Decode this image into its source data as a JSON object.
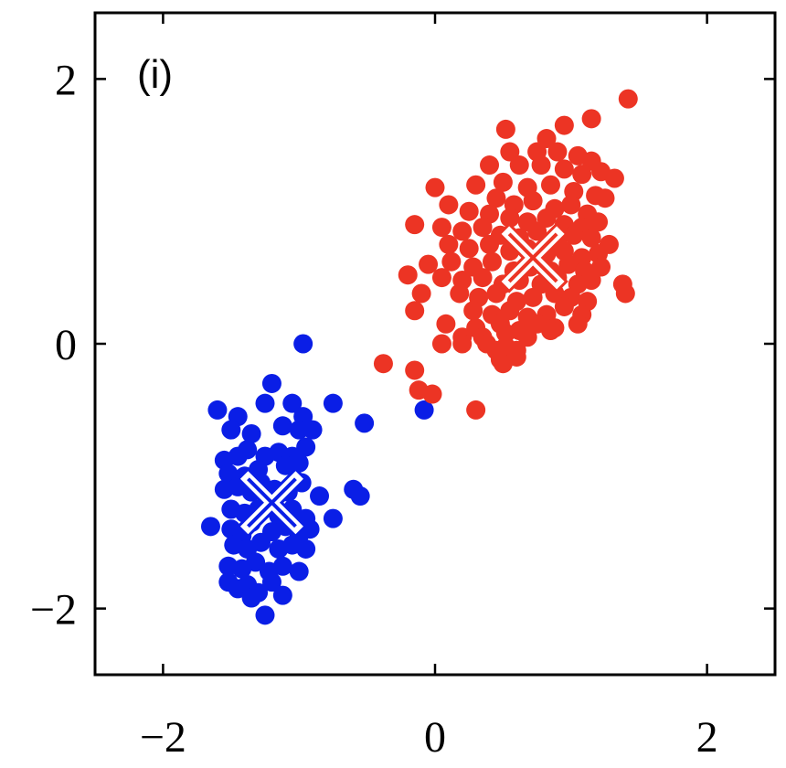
{
  "chart_data": {
    "type": "scatter",
    "annotation": "(i)",
    "xlim": [
      -2.5,
      2.5
    ],
    "ylim": [
      -2.5,
      2.5
    ],
    "xticks": [
      {
        "value": -2,
        "label": "−2"
      },
      {
        "value": 0,
        "label": "0"
      },
      {
        "value": 2,
        "label": "2"
      }
    ],
    "yticks": [
      {
        "value": -2,
        "label": "−2"
      },
      {
        "value": 0,
        "label": "0"
      },
      {
        "value": 2,
        "label": "2"
      }
    ],
    "grid": false,
    "colors": {
      "cluster_blue": "#0a1ee6",
      "cluster_red": "#ec3424",
      "centroid": "#ffffff"
    },
    "series": [
      {
        "color": "#0a1ee6",
        "centroid": [
          -1.2,
          -1.2
        ],
        "points": [
          [
            -0.97,
            0.0
          ],
          [
            -1.6,
            -0.5
          ],
          [
            -1.45,
            -0.55
          ],
          [
            -1.25,
            -0.45
          ],
          [
            -1.2,
            -0.3
          ],
          [
            -1.05,
            -0.45
          ],
          [
            -0.97,
            -0.55
          ],
          [
            -0.75,
            -0.45
          ],
          [
            -0.52,
            -0.6
          ],
          [
            -1.5,
            -0.65
          ],
          [
            -1.35,
            -0.68
          ],
          [
            -1.12,
            -0.62
          ],
          [
            -1.0,
            -0.65
          ],
          [
            -0.9,
            -0.65
          ],
          [
            -1.55,
            -0.88
          ],
          [
            -1.45,
            -0.85
          ],
          [
            -1.38,
            -0.8
          ],
          [
            -1.25,
            -0.85
          ],
          [
            -1.15,
            -0.82
          ],
          [
            -1.05,
            -0.85
          ],
          [
            -0.95,
            -0.78
          ],
          [
            -1.52,
            -0.98
          ],
          [
            -1.4,
            -1.0
          ],
          [
            -1.3,
            -0.95
          ],
          [
            -1.1,
            -0.92
          ],
          [
            -1.0,
            -0.9
          ],
          [
            -1.55,
            -1.1
          ],
          [
            -1.45,
            -1.08
          ],
          [
            -1.35,
            -1.12
          ],
          [
            -1.28,
            -1.05
          ],
          [
            -1.18,
            -1.1
          ],
          [
            -1.08,
            -1.12
          ],
          [
            -0.98,
            -1.05
          ],
          [
            -0.85,
            -1.15
          ],
          [
            -0.6,
            -1.1
          ],
          [
            -0.55,
            -1.15
          ],
          [
            -1.5,
            -1.25
          ],
          [
            -1.4,
            -1.28
          ],
          [
            -1.3,
            -1.25
          ],
          [
            -1.15,
            -1.3
          ],
          [
            -1.05,
            -1.25
          ],
          [
            -0.95,
            -1.32
          ],
          [
            -0.75,
            -1.32
          ],
          [
            -1.65,
            -1.38
          ],
          [
            -1.5,
            -1.4
          ],
          [
            -1.42,
            -1.45
          ],
          [
            -1.35,
            -1.35
          ],
          [
            -1.2,
            -1.42
          ],
          [
            -1.1,
            -1.38
          ],
          [
            -1.0,
            -1.45
          ],
          [
            -0.92,
            -1.4
          ],
          [
            -1.48,
            -1.52
          ],
          [
            -1.38,
            -1.55
          ],
          [
            -1.28,
            -1.5
          ],
          [
            -1.15,
            -1.55
          ],
          [
            -1.05,
            -1.52
          ],
          [
            -0.95,
            -1.55
          ],
          [
            -1.52,
            -1.68
          ],
          [
            -1.42,
            -1.7
          ],
          [
            -1.32,
            -1.65
          ],
          [
            -1.22,
            -1.72
          ],
          [
            -1.12,
            -1.68
          ],
          [
            -1.0,
            -1.72
          ],
          [
            -1.52,
            -1.8
          ],
          [
            -1.45,
            -1.85
          ],
          [
            -1.38,
            -1.82
          ],
          [
            -1.3,
            -1.88
          ],
          [
            -1.2,
            -1.8
          ],
          [
            -1.12,
            -1.9
          ],
          [
            -1.35,
            -1.92
          ],
          [
            -1.25,
            -2.05
          ],
          [
            -0.08,
            -0.5
          ]
        ]
      },
      {
        "color": "#ec3424",
        "centroid": [
          0.72,
          0.65
        ],
        "points": [
          [
            1.42,
            1.85
          ],
          [
            1.15,
            1.7
          ],
          [
            0.95,
            1.65
          ],
          [
            0.52,
            1.62
          ],
          [
            0.82,
            1.55
          ],
          [
            0.55,
            1.45
          ],
          [
            0.75,
            1.45
          ],
          [
            0.9,
            1.45
          ],
          [
            1.05,
            1.42
          ],
          [
            1.15,
            1.38
          ],
          [
            0.4,
            1.35
          ],
          [
            0.62,
            1.35
          ],
          [
            0.78,
            1.35
          ],
          [
            0.95,
            1.32
          ],
          [
            1.08,
            1.28
          ],
          [
            1.22,
            1.3
          ],
          [
            1.32,
            1.25
          ],
          [
            0.5,
            1.22
          ],
          [
            0.68,
            1.18
          ],
          [
            0.85,
            1.2
          ],
          [
            1.02,
            1.15
          ],
          [
            1.18,
            1.12
          ],
          [
            0.0,
            1.18
          ],
          [
            0.3,
            1.2
          ],
          [
            0.45,
            1.1
          ],
          [
            0.58,
            1.05
          ],
          [
            0.72,
            1.08
          ],
          [
            0.88,
            1.02
          ],
          [
            1.0,
            1.05
          ],
          [
            1.12,
            0.98
          ],
          [
            1.25,
            1.1
          ],
          [
            0.1,
            1.05
          ],
          [
            0.25,
            1.0
          ],
          [
            0.4,
            0.98
          ],
          [
            0.55,
            0.95
          ],
          [
            0.68,
            0.92
          ],
          [
            0.82,
            0.95
          ],
          [
            0.95,
            0.9
          ],
          [
            1.08,
            0.88
          ],
          [
            1.2,
            0.92
          ],
          [
            -0.15,
            0.9
          ],
          [
            0.05,
            0.88
          ],
          [
            0.2,
            0.85
          ],
          [
            0.35,
            0.88
          ],
          [
            0.48,
            0.82
          ],
          [
            0.62,
            0.8
          ],
          [
            0.75,
            0.85
          ],
          [
            0.9,
            0.78
          ],
          [
            1.02,
            0.82
          ],
          [
            1.15,
            0.8
          ],
          [
            1.28,
            0.75
          ],
          [
            0.1,
            0.75
          ],
          [
            0.25,
            0.72
          ],
          [
            0.4,
            0.75
          ],
          [
            0.55,
            0.7
          ],
          [
            0.68,
            0.72
          ],
          [
            0.82,
            0.68
          ],
          [
            0.95,
            0.7
          ],
          [
            1.08,
            0.65
          ],
          [
            1.2,
            0.68
          ],
          [
            -0.05,
            0.6
          ],
          [
            0.12,
            0.62
          ],
          [
            0.28,
            0.58
          ],
          [
            0.42,
            0.62
          ],
          [
            0.58,
            0.55
          ],
          [
            0.7,
            0.58
          ],
          [
            0.85,
            0.55
          ],
          [
            0.98,
            0.6
          ],
          [
            1.1,
            0.55
          ],
          [
            1.22,
            0.58
          ],
          [
            -0.2,
            0.52
          ],
          [
            0.05,
            0.5
          ],
          [
            0.2,
            0.48
          ],
          [
            0.35,
            0.5
          ],
          [
            0.5,
            0.45
          ],
          [
            0.62,
            0.48
          ],
          [
            0.78,
            0.45
          ],
          [
            0.9,
            0.5
          ],
          [
            1.05,
            0.45
          ],
          [
            1.15,
            0.48
          ],
          [
            -0.1,
            0.38
          ],
          [
            0.18,
            0.38
          ],
          [
            0.32,
            0.35
          ],
          [
            0.45,
            0.38
          ],
          [
            0.6,
            0.32
          ],
          [
            0.72,
            0.35
          ],
          [
            0.88,
            0.38
          ],
          [
            1.0,
            0.35
          ],
          [
            1.12,
            0.32
          ],
          [
            1.38,
            0.45
          ],
          [
            1.4,
            0.38
          ],
          [
            -0.15,
            0.25
          ],
          [
            0.28,
            0.25
          ],
          [
            0.42,
            0.22
          ],
          [
            0.55,
            0.25
          ],
          [
            0.68,
            0.2
          ],
          [
            0.82,
            0.22
          ],
          [
            0.95,
            0.28
          ],
          [
            1.08,
            0.22
          ],
          [
            0.08,
            0.15
          ],
          [
            0.3,
            0.12
          ],
          [
            0.48,
            0.15
          ],
          [
            0.62,
            0.1
          ],
          [
            0.75,
            0.15
          ],
          [
            0.88,
            0.12
          ],
          [
            1.05,
            0.15
          ],
          [
            0.2,
            0.05
          ],
          [
            0.35,
            0.05
          ],
          [
            0.52,
            0.08
          ],
          [
            0.68,
            0.05
          ],
          [
            0.85,
            0.1
          ],
          [
            0.05,
            0.0
          ],
          [
            0.2,
            0.0
          ],
          [
            0.38,
            0.0
          ],
          [
            0.52,
            -0.02
          ],
          [
            0.6,
            -0.05
          ],
          [
            0.45,
            -0.05
          ],
          [
            0.48,
            -0.12
          ],
          [
            0.5,
            -0.15
          ],
          [
            0.6,
            -0.1
          ],
          [
            -0.38,
            -0.15
          ],
          [
            -0.15,
            -0.2
          ],
          [
            -0.12,
            -0.35
          ],
          [
            -0.02,
            -0.38
          ],
          [
            0.3,
            -0.5
          ]
        ]
      }
    ]
  }
}
